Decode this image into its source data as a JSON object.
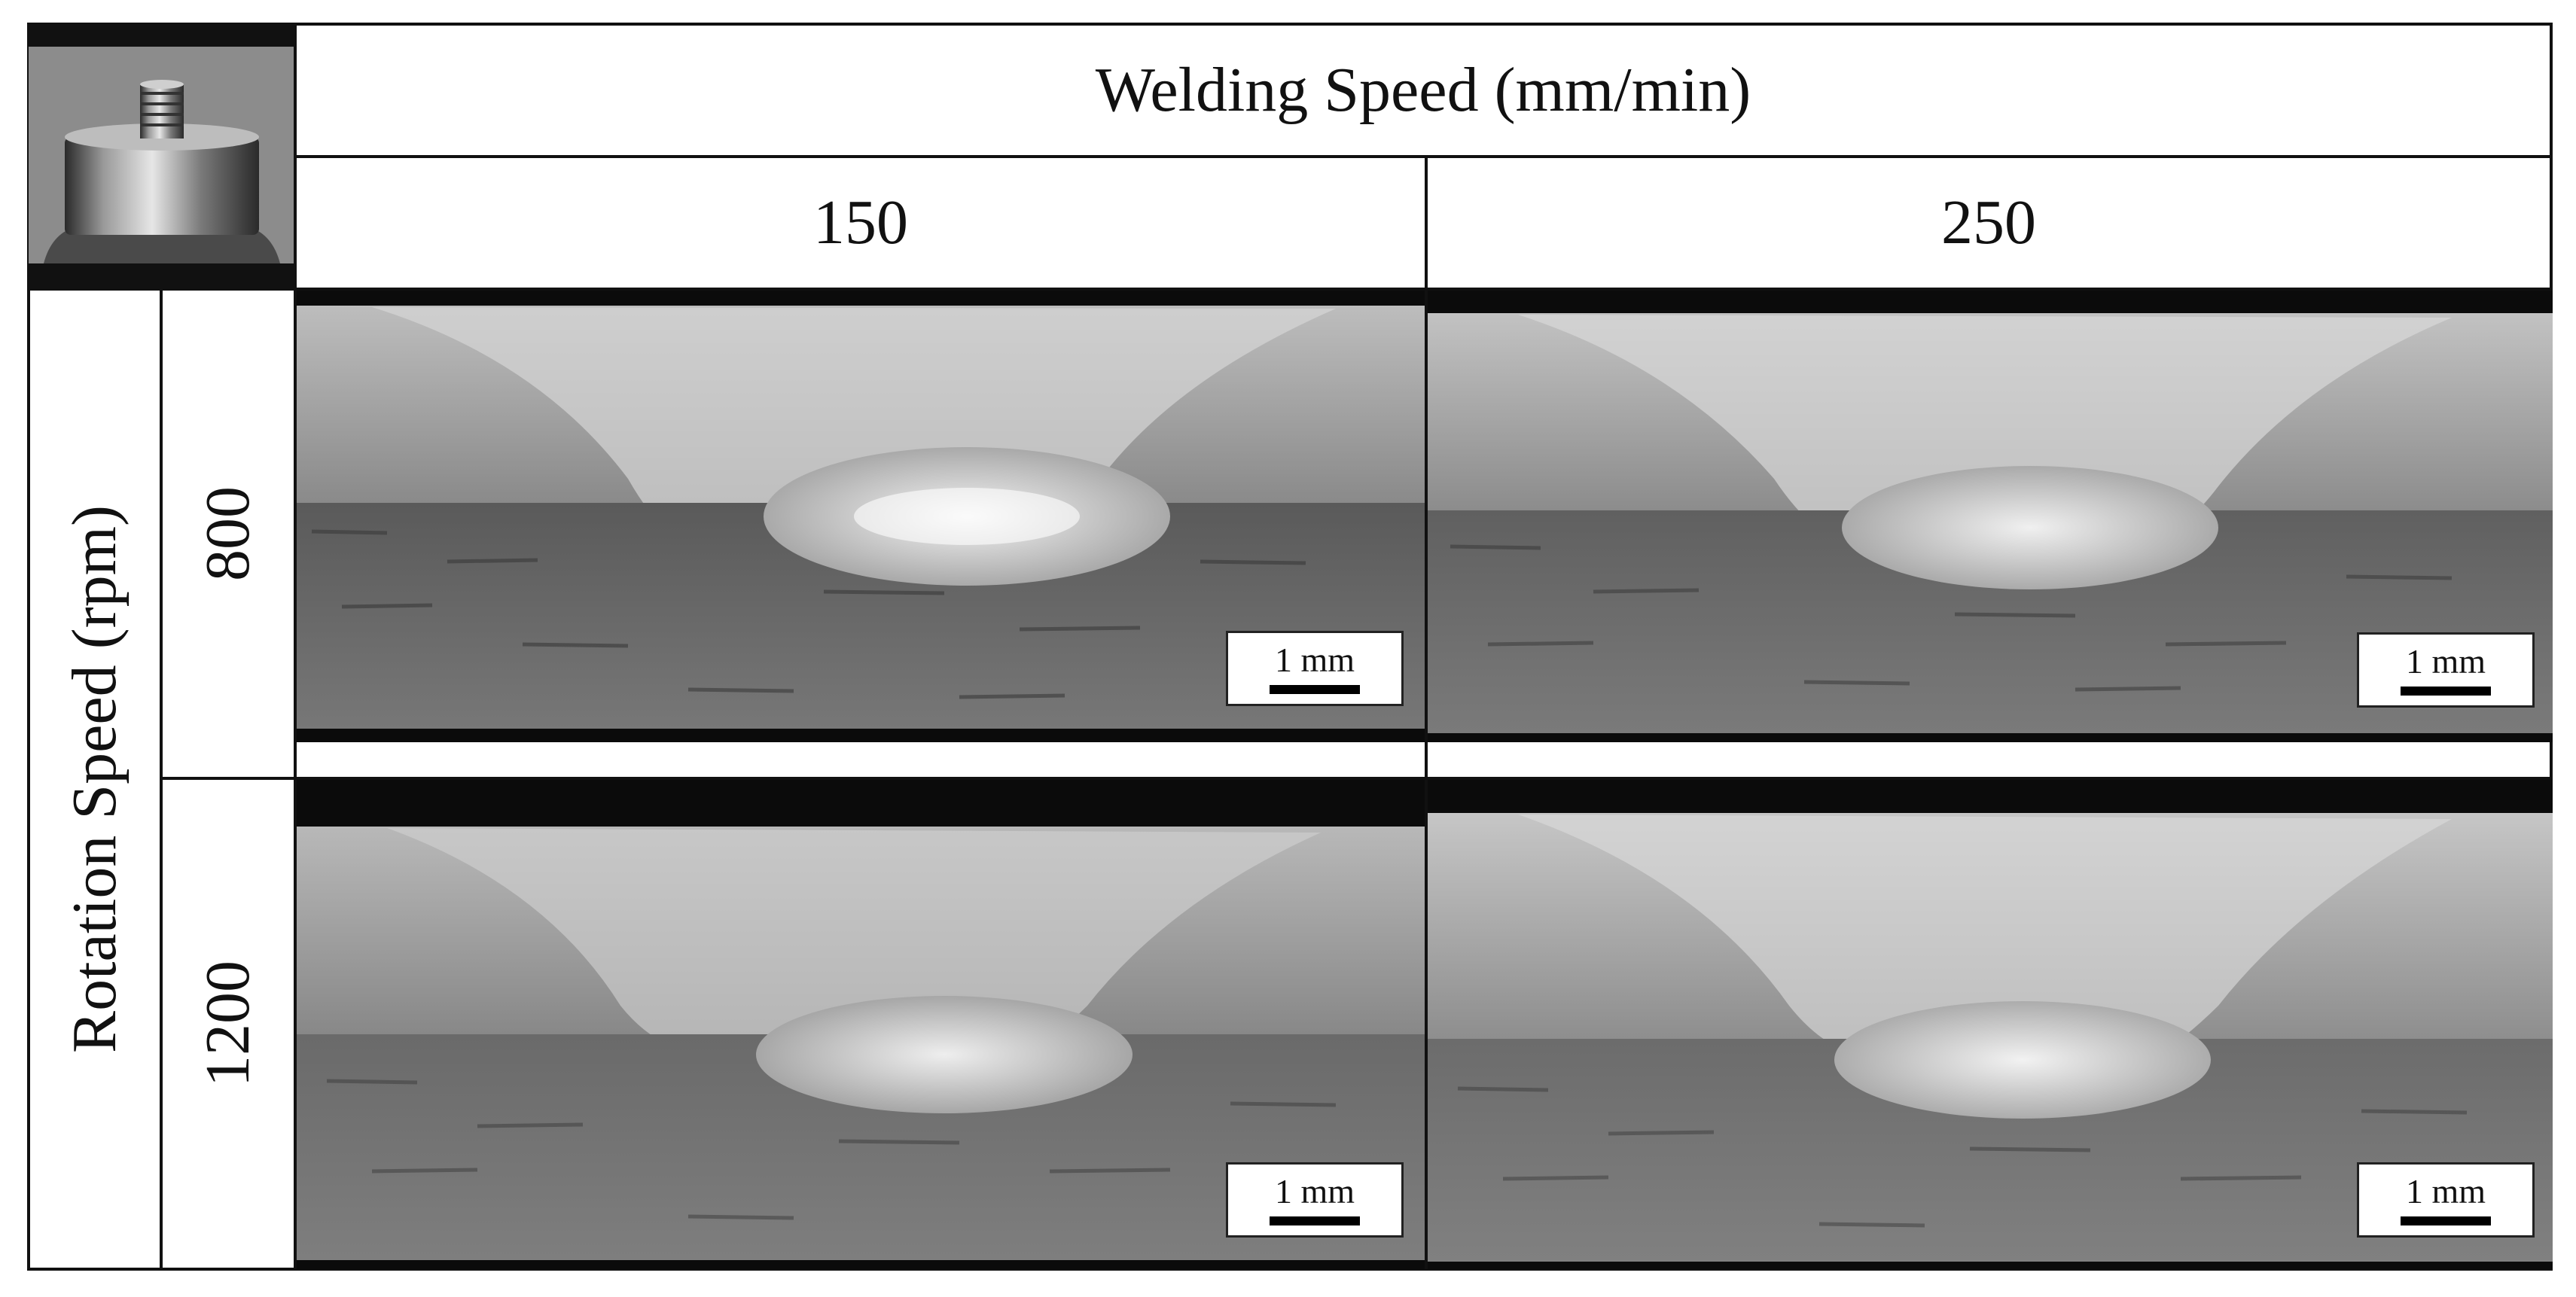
{
  "header": {
    "column_group_title": "Welding Speed (mm/min)",
    "columns": [
      "150",
      "250"
    ]
  },
  "row_group_title": "Rotation  Speed (rpm)",
  "rows": [
    "800",
    "1200"
  ],
  "panels": [
    {
      "row": "800",
      "column": "150",
      "scale_label": "1 mm"
    },
    {
      "row": "800",
      "column": "250",
      "scale_label": "1 mm"
    },
    {
      "row": "1200",
      "column": "150",
      "scale_label": "1 mm"
    },
    {
      "row": "1200",
      "column": "250",
      "scale_label": "1 mm"
    }
  ],
  "colors": {
    "border": "#111111",
    "background": "#ffffff",
    "scale_bar": "#000000"
  },
  "icons": {
    "tool_photo": "welding-tool-pin-photo"
  }
}
